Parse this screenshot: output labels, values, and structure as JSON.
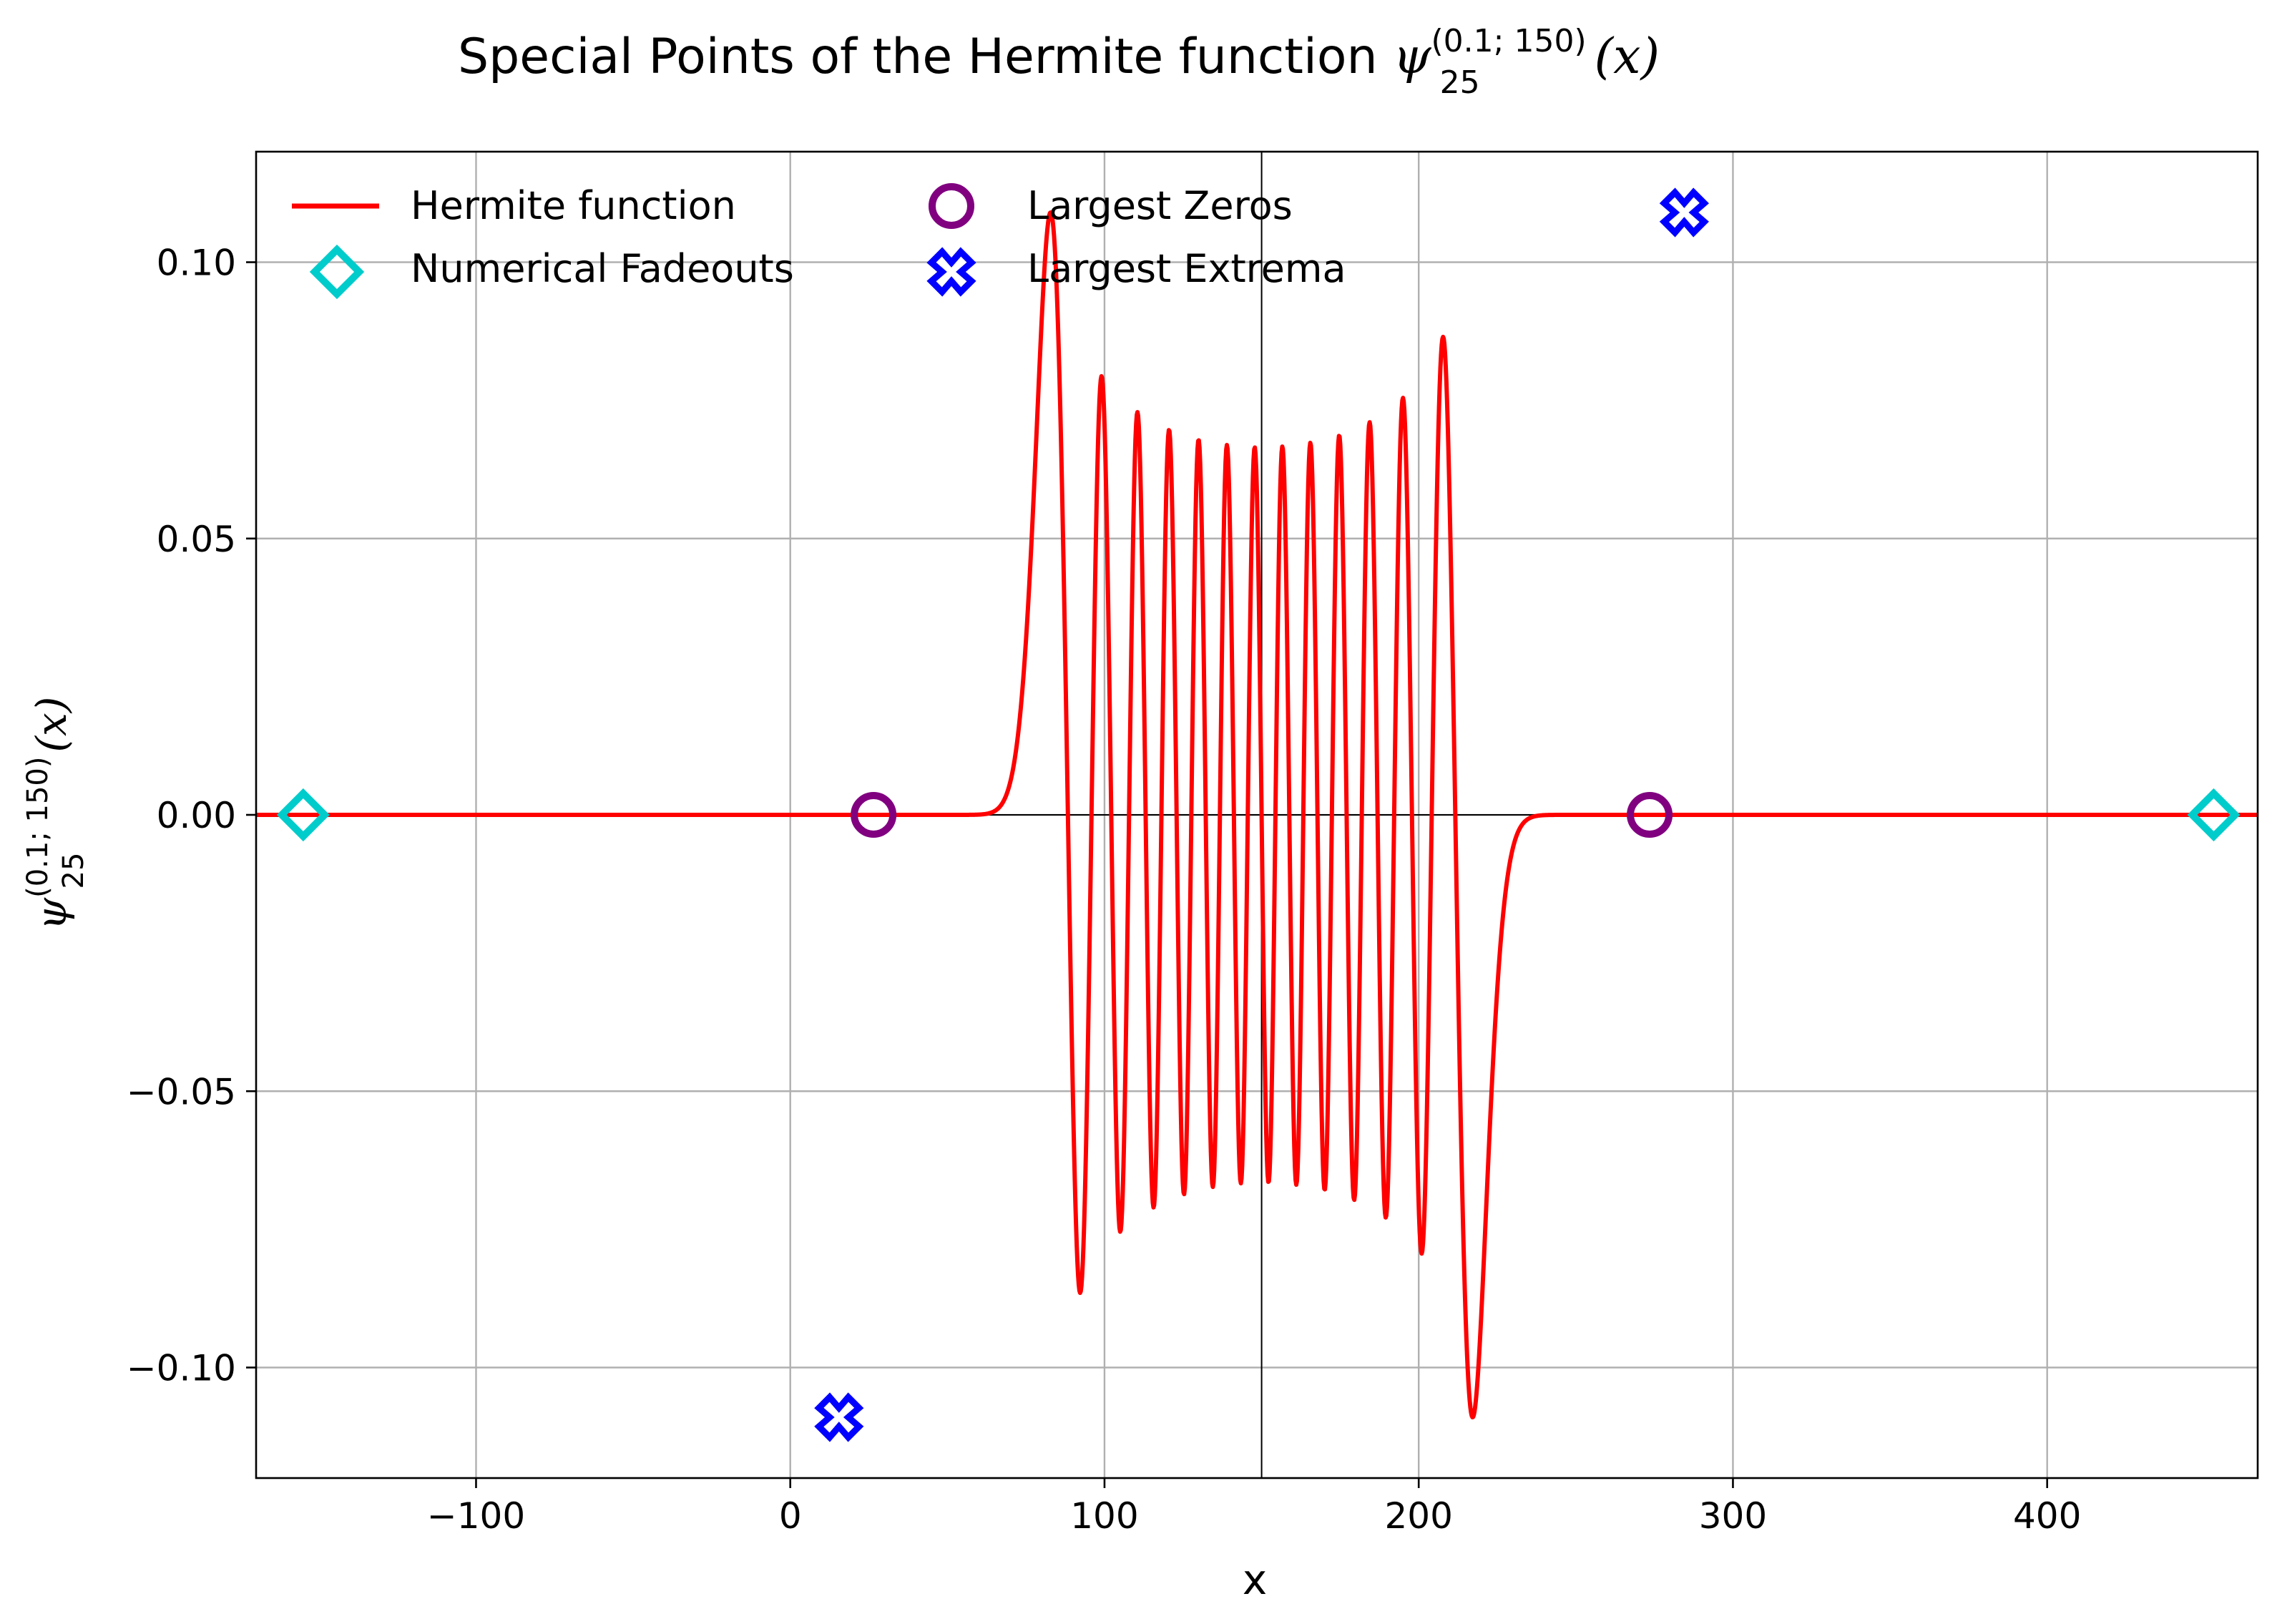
{
  "chart_data": {
    "type": "line",
    "title_prefix": "Special Points of the Hermite function ",
    "title_symbol": "ψ",
    "title_subscript": "25",
    "title_superscript": "(0.1; 150)",
    "title_suffix": "(x)",
    "xlabel": "x",
    "ylabel_symbol": "ψ",
    "ylabel_subscript": "25",
    "ylabel_superscript": "(0.1; 150)",
    "ylabel_suffix": "(x)",
    "xlim": [
      -170,
      467
    ],
    "ylim": [
      -0.12,
      0.12
    ],
    "xticks": [
      -100,
      0,
      100,
      200,
      300,
      400
    ],
    "xtick_labels": [
      "−100",
      "0",
      "100",
      "200",
      "300",
      "400"
    ],
    "yticks": [
      -0.1,
      -0.05,
      0.0,
      0.05,
      0.1
    ],
    "ytick_labels": [
      "−0.10",
      "−0.05",
      "0.00",
      "0.05",
      "0.10"
    ],
    "grid": true,
    "legend_position": "top-left",
    "reference_lines": {
      "x": 150,
      "y": 0
    },
    "series": [
      {
        "name": "Hermite function",
        "kind": "line",
        "color": "#ff0000",
        "n": 25,
        "t": 0.1,
        "x0": 150
      },
      {
        "name": "Numerical Fadeouts",
        "kind": "marker",
        "marker": "diamond",
        "color": "#00cccc",
        "x": [
          -155,
          453
        ],
        "y": [
          0.0,
          0.0
        ]
      },
      {
        "name": "Largest Zeros",
        "kind": "marker",
        "marker": "circle",
        "color": "#800080",
        "x": [
          26.5,
          273.5
        ],
        "y": [
          0.0,
          0.0
        ]
      },
      {
        "name": "Largest Extrema",
        "kind": "marker",
        "marker": "cross",
        "color": "#0000ff",
        "x": [
          15.5,
          284.5
        ],
        "y": [
          -0.109,
          0.109
        ]
      }
    ]
  }
}
